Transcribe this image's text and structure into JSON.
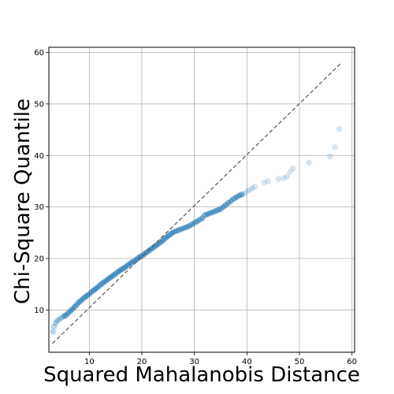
{
  "chart_data": {
    "type": "scatter",
    "title": "",
    "xlabel": "Squared Mahalanobis Distance",
    "ylabel": "Chi-Square Quantile",
    "xlim": [
      2.3,
      60.5
    ],
    "ylim": [
      1.8,
      61.0
    ],
    "xticks": [
      10,
      20,
      30,
      40,
      50,
      60
    ],
    "yticks": [
      10,
      20,
      30,
      40,
      50,
      60
    ],
    "grid": true,
    "legend": "none",
    "point_color": "#1f77b4",
    "reference_line": {
      "style": "dashed",
      "color": "#555555",
      "from": [
        3.0,
        3.5
      ],
      "to": [
        57.8,
        57.8
      ]
    },
    "series": [
      {
        "x": [
          3.1,
          3.3,
          3.6,
          3.9,
          4.3,
          4.7,
          5.2,
          5.6,
          6.0,
          6.4,
          6.8,
          7.2,
          7.6,
          8.0,
          8.4,
          8.8,
          9.2,
          9.6,
          10.0,
          10.4,
          10.8,
          11.2,
          11.6,
          12.0,
          12.4,
          12.8,
          13.2,
          13.6,
          14.0,
          14.4,
          14.8,
          15.2,
          15.6,
          16.0,
          16.4,
          16.8,
          17.2,
          17.6,
          18.0,
          18.4,
          18.8,
          19.2,
          19.6,
          20.0,
          20.4,
          20.8,
          21.2,
          21.6,
          22.0,
          22.4,
          22.8,
          23.2,
          23.6,
          24.0,
          24.4,
          24.8,
          25.2,
          25.6,
          26.0,
          26.5,
          27.0,
          27.5,
          28.0,
          28.5,
          29.0,
          29.5,
          30.0,
          30.5,
          31.0,
          31.5,
          32.0,
          32.5,
          33.0,
          33.5,
          34.0,
          34.5,
          35.0,
          35.5,
          36.0,
          36.5,
          37.0,
          37.5,
          38.0,
          38.5,
          39.0,
          39.5,
          40.0,
          40.5,
          41.0,
          41.5,
          43.3,
          44.0,
          46.0,
          47.0,
          47.6,
          48.2,
          48.8,
          51.8,
          55.8,
          56.8,
          57.6
        ],
        "y": [
          5.8,
          6.8,
          7.5,
          7.9,
          8.2,
          8.5,
          8.8,
          9.0,
          9.4,
          9.8,
          10.2,
          10.6,
          11.0,
          11.5,
          11.8,
          12.2,
          12.5,
          12.8,
          13.1,
          13.5,
          13.8,
          14.1,
          14.4,
          14.8,
          15.1,
          15.4,
          15.7,
          16.0,
          16.3,
          16.6,
          16.9,
          17.2,
          17.5,
          17.8,
          18.0,
          18.3,
          18.6,
          18.9,
          19.2,
          19.4,
          19.7,
          20.0,
          20.3,
          20.5,
          20.8,
          21.1,
          21.4,
          21.7,
          22.0,
          22.3,
          22.6,
          22.9,
          23.2,
          23.5,
          23.9,
          24.2,
          24.5,
          24.8,
          25.1,
          25.3,
          25.5,
          25.7,
          25.9,
          26.1,
          26.3,
          26.6,
          26.9,
          27.2,
          27.5,
          27.8,
          28.4,
          28.6,
          28.8,
          29.0,
          29.2,
          29.4,
          29.6,
          30.0,
          30.4,
          30.8,
          31.2,
          31.6,
          31.9,
          32.2,
          32.4,
          32.6,
          33.0,
          33.3,
          33.6,
          33.9,
          34.7,
          35.0,
          35.4,
          35.6,
          35.9,
          36.8,
          37.5,
          38.6,
          39.8,
          41.6,
          45.1
        ]
      }
    ]
  }
}
